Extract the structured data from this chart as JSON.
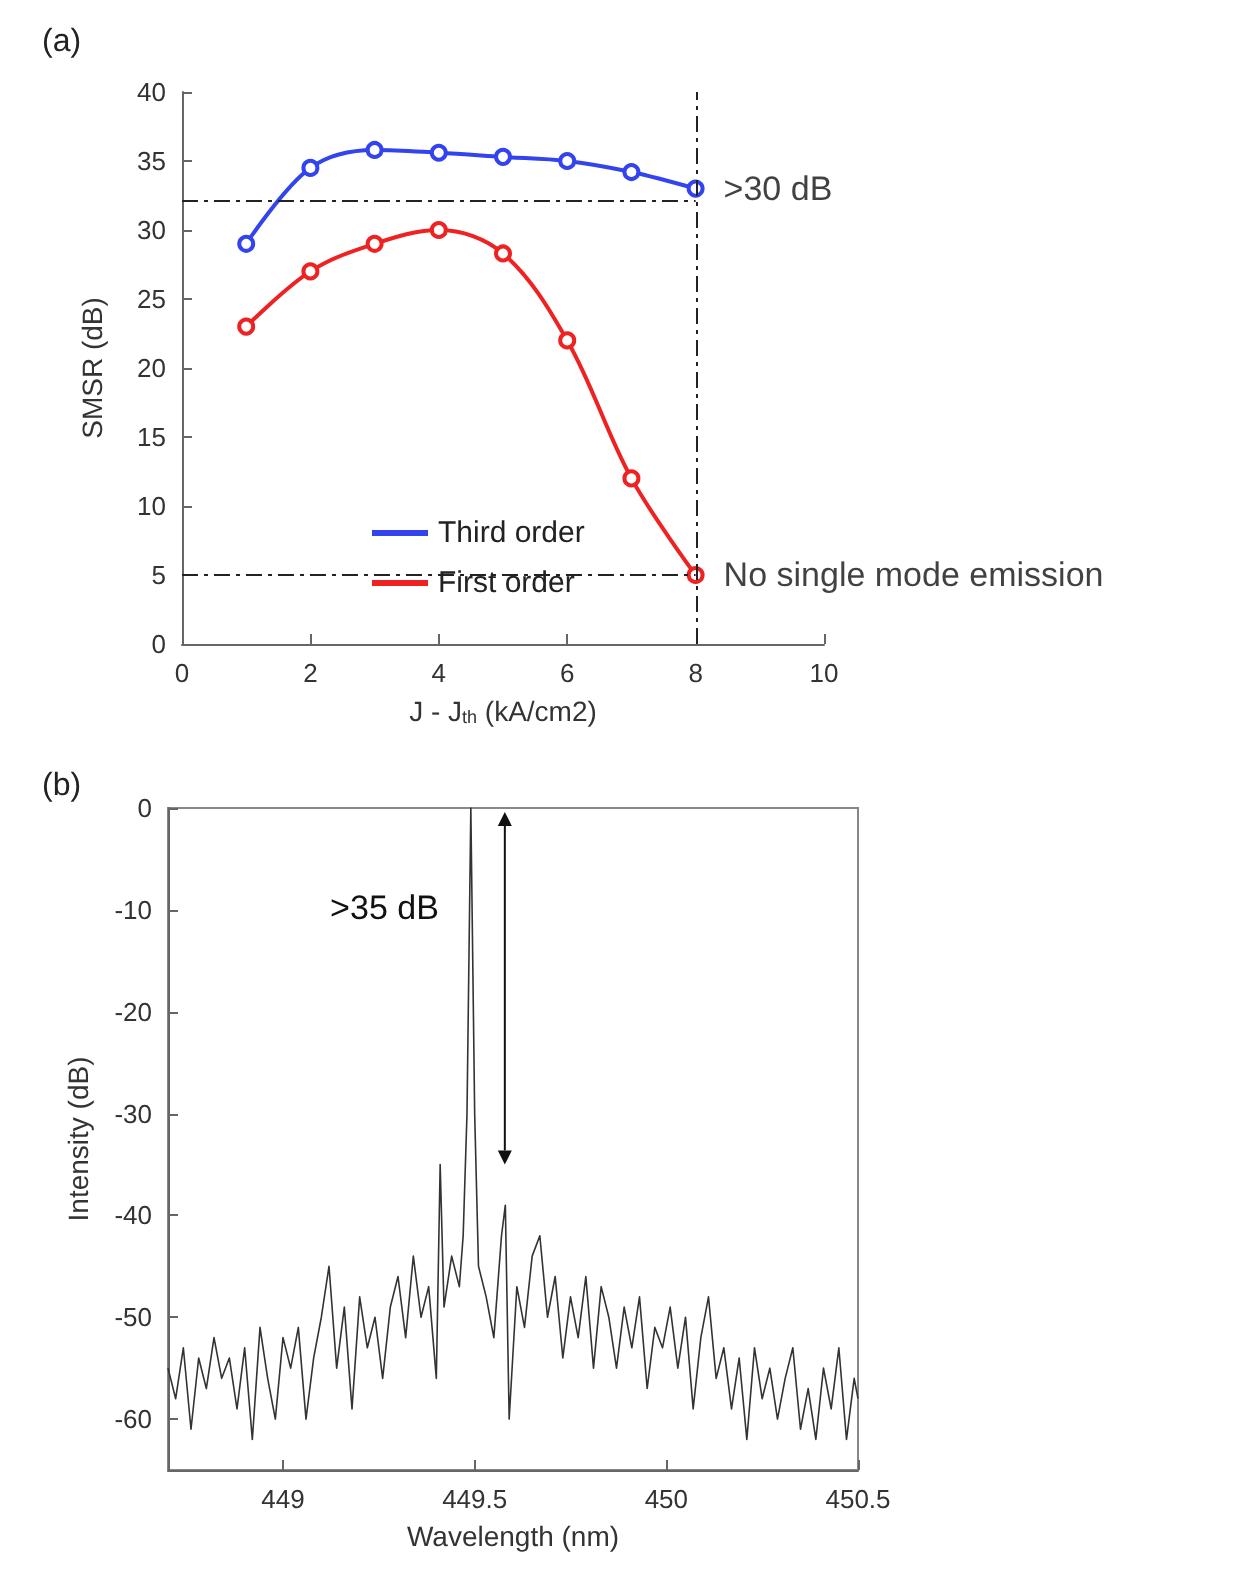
{
  "chart_data": [
    {
      "type": "line",
      "title": "(a)",
      "xlabel": "J - J$_{th}$ (kA/cm2)",
      "ylabel": "SMSR (dB)",
      "x": [
        1,
        2,
        3,
        4,
        5,
        6,
        7,
        8
      ],
      "series": [
        {
          "name": "Third order",
          "color": "#3344ee",
          "values": [
            29,
            34.5,
            35.8,
            35.6,
            35.3,
            35,
            34.2,
            33
          ]
        },
        {
          "name": "First order",
          "color": "#ee2222",
          "values": [
            23,
            27,
            29,
            30,
            28.3,
            22,
            12,
            5
          ]
        }
      ],
      "xlim": [
        0,
        10
      ],
      "xticks": [
        0,
        2,
        4,
        6,
        8,
        10
      ],
      "ylim": [
        0,
        40
      ],
      "yticks": [
        0,
        5,
        10,
        15,
        20,
        25,
        30,
        35,
        40
      ],
      "ref_lines": [
        {
          "axis": "y",
          "value": 32.2,
          "line_style": "dashed"
        },
        {
          "axis": "y",
          "value": 5,
          "line_style": "dashed"
        },
        {
          "axis": "x",
          "value": 8,
          "line_style": "dashed"
        }
      ],
      "annotations": [
        {
          "text": ">30 dB",
          "x": 8,
          "y": 33
        },
        {
          "text": "No single mode emission",
          "x": 8,
          "y": 5
        }
      ],
      "marker": "circle",
      "legend": "bottom",
      "grid": false
    },
    {
      "type": "line",
      "title": "(b)",
      "xlabel": "Wavelength (nm)",
      "ylabel": "Intensity (dB)",
      "x": [
        448.7,
        448.72,
        448.74,
        448.76,
        448.78,
        448.8,
        448.82,
        448.84,
        448.86,
        448.88,
        448.9,
        448.92,
        448.94,
        448.96,
        448.98,
        449.0,
        449.02,
        449.04,
        449.06,
        449.08,
        449.1,
        449.12,
        449.14,
        449.16,
        449.18,
        449.2,
        449.22,
        449.24,
        449.26,
        449.28,
        449.3,
        449.32,
        449.34,
        449.36,
        449.38,
        449.4,
        449.41,
        449.42,
        449.44,
        449.46,
        449.47,
        449.48,
        449.49,
        449.5,
        449.51,
        449.53,
        449.55,
        449.57,
        449.58,
        449.59,
        449.61,
        449.63,
        449.65,
        449.67,
        449.69,
        449.71,
        449.73,
        449.75,
        449.77,
        449.79,
        449.81,
        449.83,
        449.85,
        449.87,
        449.89,
        449.91,
        449.93,
        449.95,
        449.97,
        449.99,
        450.01,
        450.03,
        450.05,
        450.07,
        450.09,
        450.11,
        450.13,
        450.15,
        450.17,
        450.19,
        450.21,
        450.23,
        450.25,
        450.27,
        450.29,
        450.31,
        450.33,
        450.35,
        450.37,
        450.39,
        450.41,
        450.43,
        450.45,
        450.47,
        450.49,
        450.5
      ],
      "series": [
        {
          "color": "#333333",
          "values": [
            -55,
            -58,
            -53,
            -61,
            -54,
            -57,
            -52,
            -56,
            -54,
            -59,
            -53,
            -62,
            -51,
            -56,
            -60,
            -52,
            -55,
            -51,
            -60,
            -54,
            -50,
            -45,
            -55,
            -49,
            -59,
            -48,
            -53,
            -50,
            -56,
            -49,
            -46,
            -52,
            -44,
            -50,
            -47,
            -56,
            -35,
            -49,
            -44,
            -47,
            -42,
            -30,
            0,
            -30,
            -45,
            -48,
            -52,
            -42,
            -39,
            -60,
            -47,
            -51,
            -44,
            -42,
            -50,
            -46,
            -54,
            -48,
            -52,
            -46,
            -55,
            -47,
            -50,
            -55,
            -49,
            -53,
            -48,
            -57,
            -51,
            -53,
            -49,
            -55,
            -50,
            -59,
            -52,
            -48,
            -56,
            -53,
            -59,
            -54,
            -62,
            -53,
            -58,
            -55,
            -60,
            -56,
            -53,
            -61,
            -57,
            -62,
            -55,
            -59,
            -53,
            -62,
            -56,
            -58
          ]
        }
      ],
      "xlim": [
        448.7,
        450.5
      ],
      "xticks": [
        449,
        449.5,
        450,
        450.5
      ],
      "ylim": [
        -65,
        0
      ],
      "yticks": [
        -60,
        -50,
        -40,
        -30,
        -20,
        -10,
        0
      ],
      "annotations": [
        ">35 dB"
      ],
      "marker": "none",
      "grid": false
    }
  ]
}
